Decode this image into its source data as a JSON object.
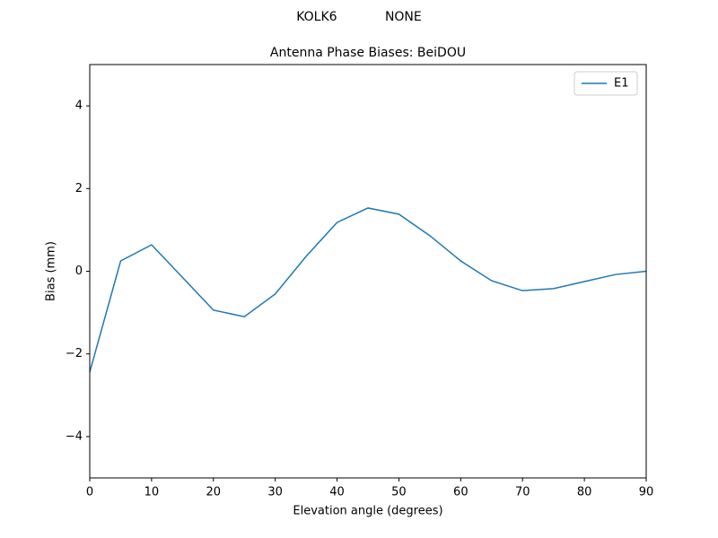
{
  "chart_data": {
    "type": "line",
    "suptitle": "KOLK6            NONE",
    "title": "Antenna Phase Biases: BeiDOU",
    "xlabel": "Elevation angle (degrees)",
    "ylabel": "Bias (mm)",
    "x": [
      0,
      5,
      10,
      15,
      20,
      25,
      30,
      35,
      40,
      45,
      50,
      55,
      60,
      65,
      70,
      75,
      80,
      85,
      90
    ],
    "series": [
      {
        "name": "E1",
        "color": "#1f77b4",
        "values": [
          -2.44,
          0.25,
          0.64,
          -0.15,
          -0.94,
          -1.1,
          -0.55,
          0.36,
          1.18,
          1.53,
          1.38,
          0.86,
          0.25,
          -0.23,
          -0.47,
          -0.42,
          -0.25,
          -0.08,
          0.0
        ]
      }
    ],
    "xlim": [
      0,
      90
    ],
    "ylim": [
      -5,
      5
    ],
    "xticks": [
      0,
      10,
      20,
      30,
      40,
      50,
      60,
      70,
      80,
      90
    ],
    "yticks": [
      {
        "value": -4,
        "label": "−4"
      },
      {
        "value": -2,
        "label": "−2"
      },
      0,
      2,
      4
    ],
    "grid": false,
    "legend": "upper right"
  }
}
